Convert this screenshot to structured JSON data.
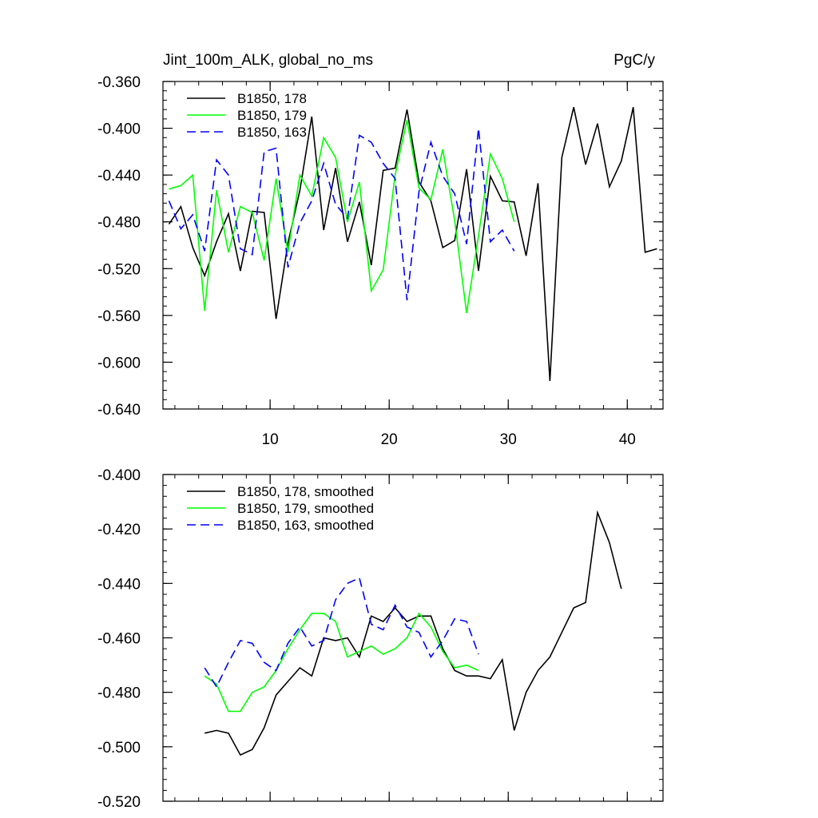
{
  "figure": {
    "title_left": "Jint_100m_ALK, global_no_ms",
    "title_right": "PgC/y"
  },
  "chart_data": [
    {
      "type": "line",
      "title": "Jint_100m_ALK, global_no_ms",
      "units": "PgC/y",
      "xlim": [
        1,
        43
      ],
      "ylim": [
        -0.64,
        -0.36
      ],
      "xticks": [
        10,
        20,
        30,
        40
      ],
      "yticks": [
        -0.64,
        -0.6,
        -0.56,
        -0.52,
        -0.48,
        -0.44,
        -0.4,
        -0.36
      ],
      "ytick_labels": [
        "-0.640",
        "-0.600",
        "-0.560",
        "-0.520",
        "-0.480",
        "-0.440",
        "-0.400",
        "-0.360"
      ],
      "legend_position": "top-left",
      "series": [
        {
          "name": "B1850, 178",
          "color": "#000000",
          "dash": "solid",
          "x": [
            1.5,
            2.5,
            3.5,
            4.5,
            5.5,
            6.5,
            7.5,
            8.5,
            9.5,
            10.5,
            11.5,
            12.5,
            13.5,
            14.5,
            15.5,
            16.5,
            17.5,
            18.5,
            19.5,
            20.5,
            21.5,
            22.5,
            23.5,
            24.5,
            25.5,
            26.5,
            27.5,
            28.5,
            29.5,
            30.5,
            31.5,
            32.5,
            33.5,
            34.5,
            35.5,
            36.5,
            37.5,
            38.5,
            39.5,
            40.5,
            41.5,
            42.5
          ],
          "values": [
            -0.482,
            -0.467,
            -0.502,
            -0.526,
            -0.497,
            -0.473,
            -0.522,
            -0.471,
            -0.472,
            -0.563,
            -0.498,
            -0.453,
            -0.39,
            -0.487,
            -0.434,
            -0.497,
            -0.463,
            -0.517,
            -0.436,
            -0.434,
            -0.384,
            -0.446,
            -0.462,
            -0.502,
            -0.496,
            -0.435,
            -0.522,
            -0.441,
            -0.462,
            -0.463,
            -0.509,
            -0.447,
            -0.616,
            -0.425,
            -0.382,
            -0.431,
            -0.396,
            -0.45,
            -0.428,
            -0.382,
            -0.506,
            -0.503
          ]
        },
        {
          "name": "B1850, 179",
          "color": "#00ff00",
          "dash": "solid",
          "x": [
            1.5,
            2.5,
            3.5,
            4.5,
            5.5,
            6.5,
            7.5,
            8.5,
            9.5,
            10.5,
            11.5,
            12.5,
            13.5,
            14.5,
            15.5,
            16.5,
            17.5,
            18.5,
            19.5,
            20.5,
            21.5,
            22.5,
            23.5,
            24.5,
            25.5,
            26.5,
            27.5,
            28.5,
            29.5,
            30.5
          ],
          "values": [
            -0.452,
            -0.449,
            -0.44,
            -0.556,
            -0.453,
            -0.506,
            -0.467,
            -0.472,
            -0.513,
            -0.443,
            -0.506,
            -0.44,
            -0.458,
            -0.408,
            -0.425,
            -0.48,
            -0.446,
            -0.539,
            -0.521,
            -0.44,
            -0.393,
            -0.451,
            -0.461,
            -0.418,
            -0.479,
            -0.558,
            -0.492,
            -0.422,
            -0.443,
            -0.48
          ]
        },
        {
          "name": "B1850, 163",
          "color": "#0000ff",
          "dash": "dashed",
          "x": [
            1.5,
            2.5,
            3.5,
            4.5,
            5.5,
            6.5,
            7.5,
            8.5,
            9.5,
            10.5,
            11.5,
            12.5,
            13.5,
            14.5,
            15.5,
            16.5,
            17.5,
            18.5,
            19.5,
            20.5,
            21.5,
            22.5,
            23.5,
            24.5,
            25.5,
            26.5,
            27.5,
            28.5,
            29.5,
            30.5
          ],
          "values": [
            -0.462,
            -0.486,
            -0.474,
            -0.505,
            -0.427,
            -0.44,
            -0.503,
            -0.508,
            -0.42,
            -0.417,
            -0.519,
            -0.481,
            -0.462,
            -0.43,
            -0.465,
            -0.477,
            -0.406,
            -0.412,
            -0.43,
            -0.443,
            -0.547,
            -0.454,
            -0.412,
            -0.441,
            -0.456,
            -0.499,
            -0.4,
            -0.497,
            -0.487,
            -0.505
          ]
        }
      ]
    },
    {
      "type": "line",
      "xlim": [
        1,
        43
      ],
      "ylim": [
        -0.52,
        -0.4
      ],
      "xticks": [
        10,
        20,
        30,
        40
      ],
      "yticks": [
        -0.52,
        -0.5,
        -0.48,
        -0.46,
        -0.44,
        -0.42,
        -0.4
      ],
      "ytick_labels": [
        "-0.520",
        "-0.500",
        "-0.480",
        "-0.460",
        "-0.440",
        "-0.420",
        "-0.400"
      ],
      "legend_position": "top-left",
      "series": [
        {
          "name": "B1850, 178, smoothed",
          "color": "#000000",
          "dash": "solid",
          "x": [
            4.5,
            5.5,
            6.5,
            7.5,
            8.5,
            9.5,
            10.5,
            11.5,
            12.5,
            13.5,
            14.5,
            15.5,
            16.5,
            17.5,
            18.5,
            19.5,
            20.5,
            21.5,
            22.5,
            23.5,
            24.5,
            25.5,
            26.5,
            27.5,
            28.5,
            29.5,
            30.5,
            31.5,
            32.5,
            33.5,
            34.5,
            35.5,
            36.5,
            37.5,
            38.5,
            39.5
          ],
          "values": [
            -0.495,
            -0.494,
            -0.495,
            -0.503,
            -0.501,
            -0.493,
            -0.481,
            -0.476,
            -0.471,
            -0.474,
            -0.46,
            -0.461,
            -0.46,
            -0.467,
            -0.452,
            -0.454,
            -0.449,
            -0.454,
            -0.452,
            -0.452,
            -0.464,
            -0.472,
            -0.474,
            -0.474,
            -0.475,
            -0.468,
            -0.494,
            -0.48,
            -0.472,
            -0.467,
            -0.458,
            -0.449,
            -0.447,
            -0.414,
            -0.425,
            -0.442
          ]
        },
        {
          "name": "B1850, 179, smoothed",
          "color": "#00ff00",
          "dash": "solid",
          "x": [
            4.5,
            5.5,
            6.5,
            7.5,
            8.5,
            9.5,
            10.5,
            11.5,
            12.5,
            13.5,
            14.5,
            15.5,
            16.5,
            17.5,
            18.5,
            19.5,
            20.5,
            21.5,
            22.5,
            23.5,
            24.5,
            25.5,
            26.5,
            27.5
          ],
          "values": [
            -0.474,
            -0.477,
            -0.487,
            -0.487,
            -0.48,
            -0.478,
            -0.472,
            -0.464,
            -0.457,
            -0.451,
            -0.451,
            -0.454,
            -0.467,
            -0.465,
            -0.463,
            -0.466,
            -0.464,
            -0.46,
            -0.451,
            -0.456,
            -0.465,
            -0.471,
            -0.47,
            -0.472
          ]
        },
        {
          "name": "B1850, 163, smoothed",
          "color": "#0000ff",
          "dash": "dashed",
          "x": [
            4.5,
            5.5,
            6.5,
            7.5,
            8.5,
            9.5,
            10.5,
            11.5,
            12.5,
            13.5,
            14.5,
            15.5,
            16.5,
            17.5,
            18.5,
            19.5,
            20.5,
            21.5,
            22.5,
            23.5,
            24.5,
            25.5,
            26.5,
            27.5
          ],
          "values": [
            -0.471,
            -0.478,
            -0.469,
            -0.461,
            -0.462,
            -0.469,
            -0.472,
            -0.462,
            -0.456,
            -0.463,
            -0.461,
            -0.446,
            -0.44,
            -0.438,
            -0.455,
            -0.457,
            -0.448,
            -0.456,
            -0.458,
            -0.467,
            -0.461,
            -0.453,
            -0.454,
            -0.466
          ]
        }
      ]
    }
  ]
}
